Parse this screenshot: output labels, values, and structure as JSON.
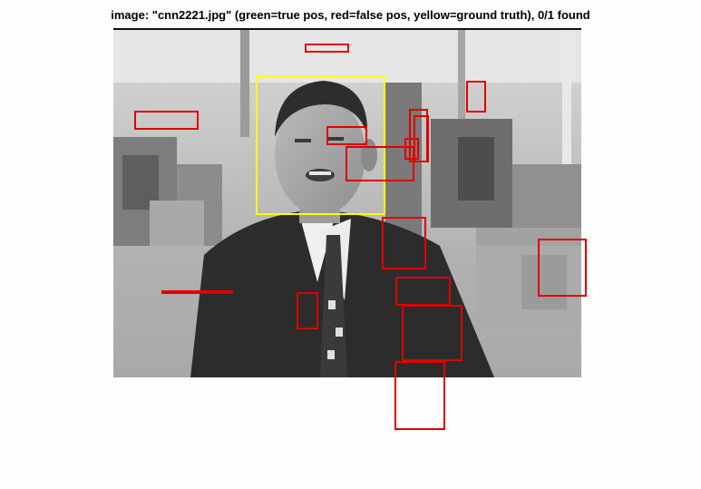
{
  "figure": {
    "title": "image: \"cnn2221.jpg\" (green=true pos, red=false pos, yellow=ground truth), 0/1 found",
    "colors": {
      "false_positive": "#e00000",
      "ground_truth": "#ffff00",
      "true_positive": "#00c000"
    },
    "detections": {
      "false_positive_count": 17,
      "ground_truth_count": 1,
      "true_positive_count": 0
    }
  }
}
